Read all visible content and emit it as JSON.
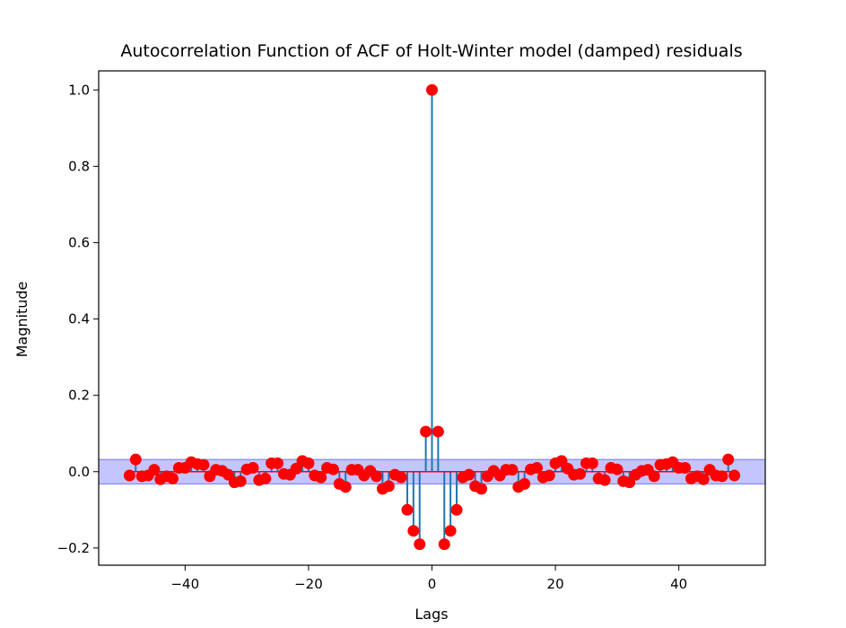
{
  "chart_data": {
    "type": "stem",
    "title": "Autocorrelation Function of ACF of Holt-Winter model (damped) residuals",
    "xlabel": "Lags",
    "ylabel": "Magnitude",
    "xlim": [
      -54,
      54
    ],
    "ylim": [
      -0.245,
      1.05
    ],
    "xticks": [
      -40,
      -20,
      0,
      20,
      40
    ],
    "xtick_labels": [
      "−40",
      "−20",
      "0",
      "20",
      "40"
    ],
    "yticks": [
      -0.2,
      0.0,
      0.2,
      0.4,
      0.6,
      0.8,
      1.0
    ],
    "ytick_labels": [
      "−0.2",
      "0.0",
      "0.2",
      "0.4",
      "0.6",
      "0.8",
      "1.0"
    ],
    "confidence_band": [
      -0.032,
      0.032
    ],
    "colors": {
      "stem": "#1f77b4",
      "marker": "#ff0000",
      "baseline": "#ff0000",
      "band_fill": "#c4c4ff",
      "band_edge": "#7777ff"
    },
    "lags": [
      -49,
      -48,
      -47,
      -46,
      -45,
      -44,
      -43,
      -42,
      -41,
      -40,
      -39,
      -38,
      -37,
      -36,
      -35,
      -34,
      -33,
      -32,
      -31,
      -30,
      -29,
      -28,
      -27,
      -26,
      -25,
      -24,
      -23,
      -22,
      -21,
      -20,
      -19,
      -18,
      -17,
      -16,
      -15,
      -14,
      -13,
      -12,
      -11,
      -10,
      -9,
      -8,
      -7,
      -6,
      -5,
      -4,
      -3,
      -2,
      -1,
      0,
      1,
      2,
      3,
      4,
      5,
      6,
      7,
      8,
      9,
      10,
      11,
      12,
      13,
      14,
      15,
      16,
      17,
      18,
      19,
      20,
      21,
      22,
      23,
      24,
      25,
      26,
      27,
      28,
      29,
      30,
      31,
      32,
      33,
      34,
      35,
      36,
      37,
      38,
      39,
      40,
      41,
      42,
      43,
      44,
      45,
      46,
      47,
      48,
      49
    ],
    "values": [
      -0.01,
      0.032,
      -0.012,
      -0.01,
      0.005,
      -0.02,
      -0.012,
      -0.018,
      0.01,
      0.01,
      0.025,
      0.02,
      0.018,
      -0.012,
      0.005,
      0.002,
      -0.008,
      -0.028,
      -0.025,
      0.006,
      0.01,
      -0.022,
      -0.018,
      0.022,
      0.022,
      -0.006,
      -0.008,
      0.008,
      0.028,
      0.022,
      -0.01,
      -0.015,
      0.01,
      0.006,
      -0.032,
      -0.04,
      0.005,
      0.005,
      -0.01,
      0.002,
      -0.012,
      -0.045,
      -0.038,
      -0.008,
      -0.015,
      -0.1,
      -0.155,
      -0.19,
      0.105,
      1.0,
      0.105,
      -0.19,
      -0.155,
      -0.1,
      -0.015,
      -0.008,
      -0.038,
      -0.045,
      -0.012,
      0.002,
      -0.01,
      0.005,
      0.005,
      -0.04,
      -0.032,
      0.006,
      0.01,
      -0.015,
      -0.01,
      0.022,
      0.028,
      0.008,
      -0.008,
      -0.006,
      0.022,
      0.022,
      -0.018,
      -0.022,
      0.01,
      0.006,
      -0.025,
      -0.028,
      -0.008,
      0.002,
      0.005,
      -0.012,
      0.018,
      0.02,
      0.025,
      0.01,
      0.01,
      -0.018,
      -0.012,
      -0.02,
      0.005,
      -0.01,
      -0.012,
      0.032,
      -0.01
    ]
  }
}
